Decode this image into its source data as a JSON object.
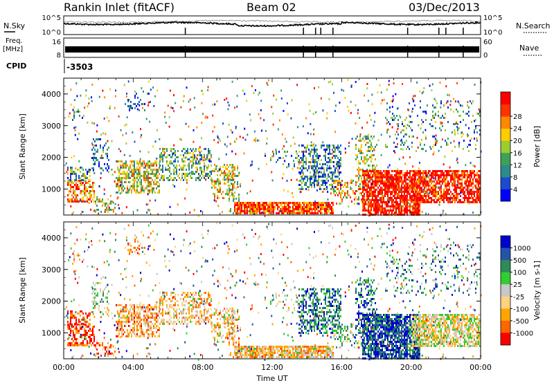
{
  "header": {
    "station": "Rankin Inlet (fitACF)",
    "beam": "Beam 02",
    "date": "03/Dec/2013"
  },
  "side_labels": {
    "nsky": "N.Sky",
    "freq": "Freq.",
    "mhz": "[MHz]",
    "cpid": "CPID",
    "cpid_value": "-3503",
    "nsearch": "N.Search",
    "nave": "Nave"
  },
  "colors": {
    "power": [
      "#0000ff",
      "#1c4ccc",
      "#2e8b8b",
      "#3fa05a",
      "#9acd32",
      "#ffcc00",
      "#ff8800",
      "#ff3300",
      "#ff0000"
    ],
    "velocity": [
      "#0000cc",
      "#2255aa",
      "#2e8b57",
      "#32cd32",
      "#c8c8c8",
      "#ffd27f",
      "#ffa500",
      "#ff6600",
      "#ff0000"
    ]
  },
  "chart_data": [
    {
      "type": "line",
      "name": "noise-panel",
      "left_ticks": [
        "10^5",
        "10^0"
      ],
      "right_ticks": [
        "10^5",
        "10^0"
      ],
      "xlim": [
        "00:00",
        "24:00"
      ]
    },
    {
      "type": "line",
      "name": "frequency-panel",
      "left_ticks": [
        "16",
        "8"
      ],
      "right_ticks": [
        "60",
        "0"
      ],
      "xlim": [
        "00:00",
        "24:00"
      ]
    },
    {
      "type": "heatmap",
      "name": "power-panel",
      "ylabel": "Slant Range [km]",
      "yticks": [
        1000,
        2000,
        3000,
        4000
      ],
      "ylim": [
        180,
        4500
      ],
      "colorbar": {
        "label": "Power [dB]",
        "ticks": [
          "4",
          "8",
          "12",
          "16",
          "20",
          "24",
          "28"
        ]
      }
    },
    {
      "type": "heatmap",
      "name": "velocity-panel",
      "ylabel": "Slant Range [km]",
      "yticks": [
        1000,
        2000,
        3000,
        4000
      ],
      "ylim": [
        180,
        4500
      ],
      "colorbar": {
        "label": "Velocity [m s-1]",
        "ticks": [
          "1000",
          "500",
          "100",
          "25",
          "-25",
          "-100",
          "-500",
          "-1000"
        ]
      }
    }
  ],
  "x_axis": {
    "label": "Time UT",
    "ticks": [
      "00:00",
      "04:00",
      "08:00",
      "12:00",
      "16:00",
      "20:00",
      "00:00"
    ]
  }
}
